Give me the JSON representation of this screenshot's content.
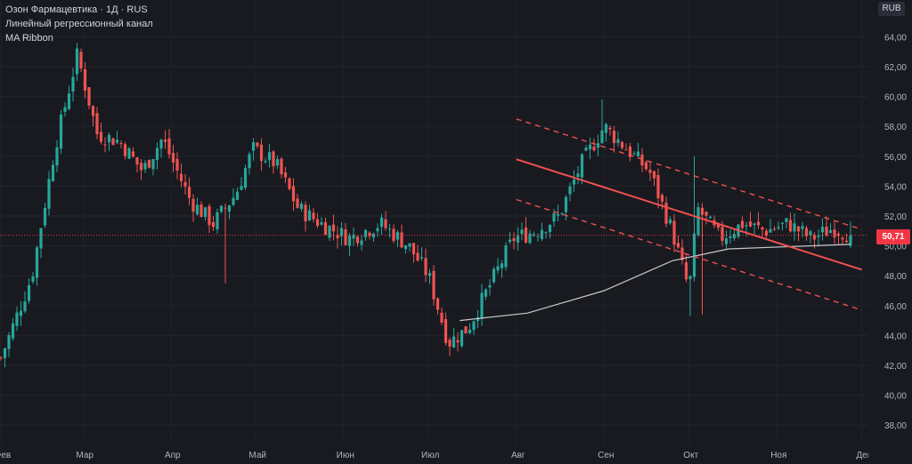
{
  "legend": {
    "symbol_line": "Озон Фармацевтика · 1Д · RUS",
    "indicator1": "Линейный регрессионный канал",
    "indicator2": "MA Ribbon"
  },
  "currency_label": "RUB",
  "last_price_label": "50,71",
  "colors": {
    "background": "#181a20",
    "up": "#26a69a",
    "down": "#ef5350",
    "channel": "#f0504f",
    "ma": "#c9c9c9",
    "price_line": "#f23645"
  },
  "chart_data": {
    "type": "candlestick",
    "ylim": [
      37,
      65
    ],
    "y_ticks": [
      "38,00",
      "40,00",
      "42,00",
      "44,00",
      "46,00",
      "48,00",
      "50,00",
      "52,00",
      "54,00",
      "56,00",
      "58,00",
      "60,00",
      "62,00",
      "64,00"
    ],
    "x_tick_labels": [
      "Фев",
      "Мар",
      "Апр",
      "Май",
      "Июн",
      "Июл",
      "Авг",
      "Сен",
      "Окт",
      "Ноя",
      "Дек"
    ],
    "last_price": 50.71,
    "close_path": [
      {
        "date": "2024-02-01",
        "close": 42.5
      },
      {
        "date": "2024-02-12",
        "close": 48.0
      },
      {
        "date": "2024-02-20",
        "close": 56.5
      },
      {
        "date": "2024-02-28",
        "close": 62.8
      },
      {
        "date": "2024-03-06",
        "close": 57.5
      },
      {
        "date": "2024-03-14",
        "close": 57.0
      },
      {
        "date": "2024-03-22",
        "close": 55.0
      },
      {
        "date": "2024-03-29",
        "close": 57.2
      },
      {
        "date": "2024-04-08",
        "close": 53.0
      },
      {
        "date": "2024-04-16",
        "close": 51.5
      },
      {
        "date": "2024-04-24",
        "close": 53.5
      },
      {
        "date": "2024-04-30",
        "close": 56.5
      },
      {
        "date": "2024-05-08",
        "close": 55.5
      },
      {
        "date": "2024-05-16",
        "close": 52.5
      },
      {
        "date": "2024-05-24",
        "close": 51.5
      },
      {
        "date": "2024-06-03",
        "close": 50.5
      },
      {
        "date": "2024-06-14",
        "close": 51.5
      },
      {
        "date": "2024-06-24",
        "close": 50.0
      },
      {
        "date": "2024-07-01",
        "close": 48.0
      },
      {
        "date": "2024-07-08",
        "close": 43.5
      },
      {
        "date": "2024-07-15",
        "close": 44.5
      },
      {
        "date": "2024-07-23",
        "close": 47.5
      },
      {
        "date": "2024-07-31",
        "close": 50.5
      },
      {
        "date": "2024-08-08",
        "close": 51.0
      },
      {
        "date": "2024-08-16",
        "close": 52.0
      },
      {
        "date": "2024-08-24",
        "close": 55.5
      },
      {
        "date": "2024-09-01",
        "close": 58.0
      },
      {
        "date": "2024-09-09",
        "close": 56.5
      },
      {
        "date": "2024-09-17",
        "close": 55.0
      },
      {
        "date": "2024-09-25",
        "close": 51.0
      },
      {
        "date": "2024-10-01",
        "close": 47.0
      },
      {
        "date": "2024-10-04",
        "close": 52.5
      },
      {
        "date": "2024-10-12",
        "close": 50.5
      },
      {
        "date": "2024-10-20",
        "close": 51.5
      },
      {
        "date": "2024-10-28",
        "close": 51.0
      },
      {
        "date": "2024-11-05",
        "close": 51.5
      },
      {
        "date": "2024-11-13",
        "close": 50.5
      },
      {
        "date": "2024-11-21",
        "close": 51.2
      },
      {
        "date": "2024-11-27",
        "close": 50.71
      }
    ],
    "ma": [
      {
        "date": "2024-07-12",
        "value": 45.0
      },
      {
        "date": "2024-08-05",
        "value": 45.5
      },
      {
        "date": "2024-09-01",
        "value": 47.0
      },
      {
        "date": "2024-09-25",
        "value": 49.0
      },
      {
        "date": "2024-10-15",
        "value": 49.8
      },
      {
        "date": "2024-11-27",
        "value": 50.1
      }
    ],
    "regression_channel": {
      "start": "2024-08-01",
      "end": "2024-12-01",
      "center_start": 55.8,
      "center_end": 48.4,
      "deviation": 2.7
    }
  }
}
